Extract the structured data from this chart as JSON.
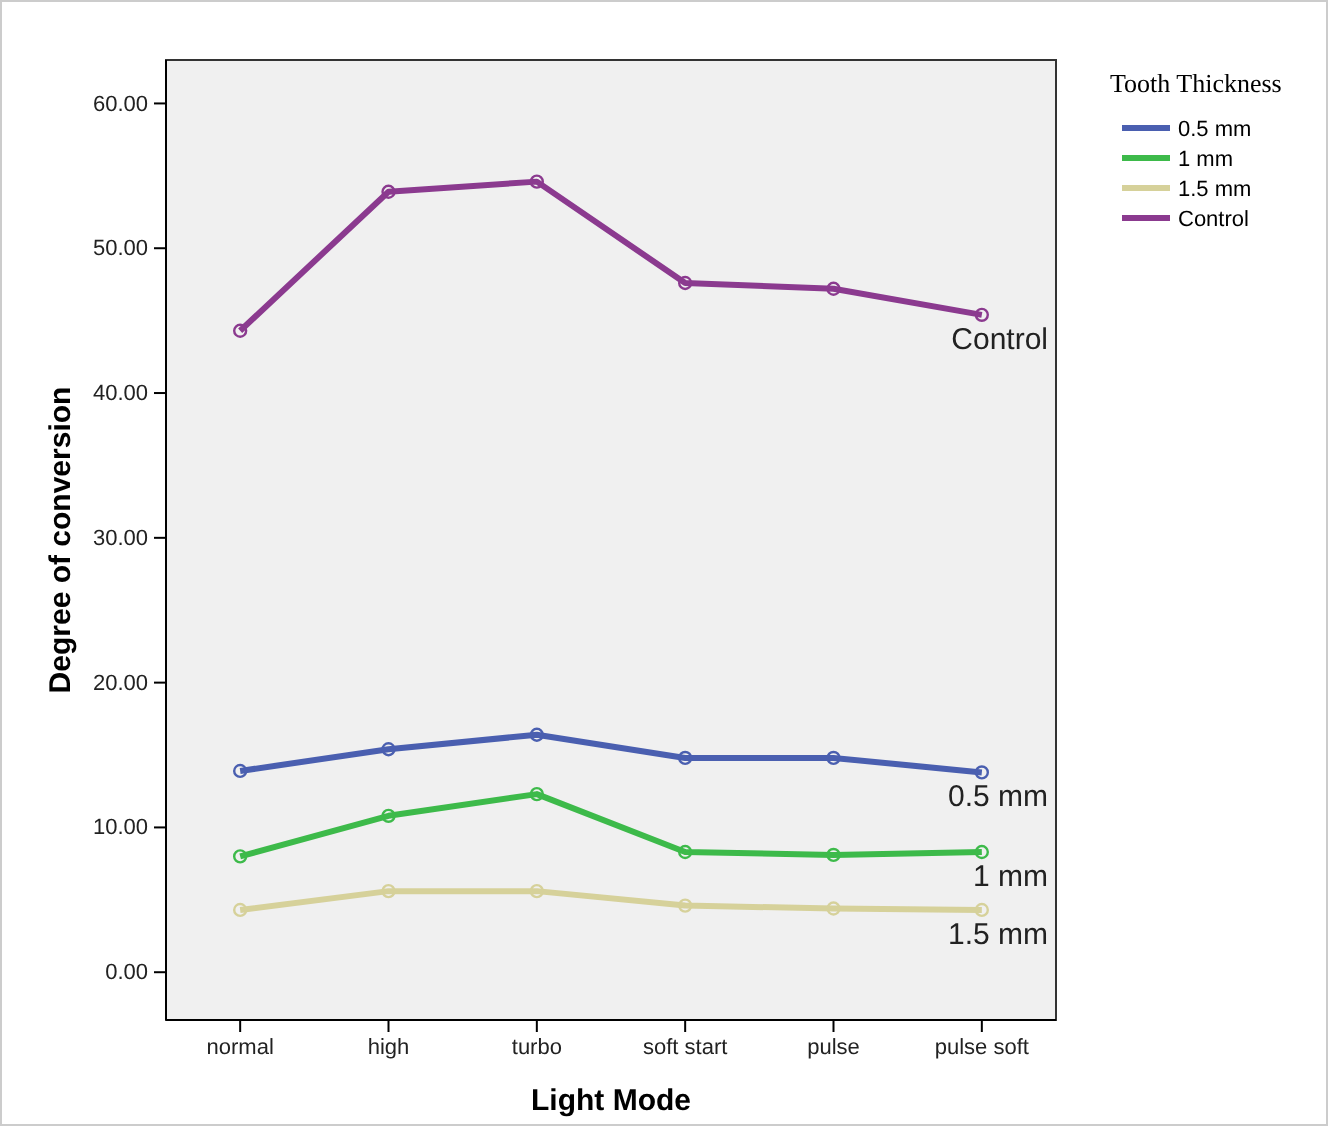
{
  "chart_data": {
    "type": "line",
    "xlabel": "Light Mode",
    "ylabel": "Degree of conversion",
    "legend_title": "Tooth Thickness",
    "legend": "top right",
    "marker": "circle",
    "grid": false,
    "categories": [
      "normal",
      "high",
      "turbo",
      "soft start",
      "pulse",
      "pulse soft"
    ],
    "ylim": [
      -3.3,
      63
    ],
    "yticks": [
      {
        "value": 0,
        "label": "0.00"
      },
      {
        "value": 10,
        "label": "10.00"
      },
      {
        "value": 20,
        "label": "20.00"
      },
      {
        "value": 30,
        "label": "30.00"
      },
      {
        "value": 40,
        "label": "40.00"
      },
      {
        "value": 50,
        "label": "50.00"
      },
      {
        "value": 60,
        "label": "60.00"
      }
    ],
    "series": [
      {
        "name": "0.5 mm",
        "color": "#4a5fb0",
        "values": [
          13.9,
          15.4,
          16.4,
          14.8,
          14.8,
          13.8
        ]
      },
      {
        "name": "1 mm",
        "color": "#3dba4a",
        "values": [
          8.0,
          10.8,
          12.3,
          8.3,
          8.1,
          8.3
        ]
      },
      {
        "name": "1.5 mm",
        "color": "#d6d19a",
        "values": [
          4.3,
          5.6,
          5.6,
          4.6,
          4.4,
          4.3
        ]
      },
      {
        "name": "Control",
        "color": "#8b3a8f",
        "values": [
          44.3,
          53.9,
          54.6,
          47.6,
          47.2,
          45.4
        ]
      }
    ]
  }
}
